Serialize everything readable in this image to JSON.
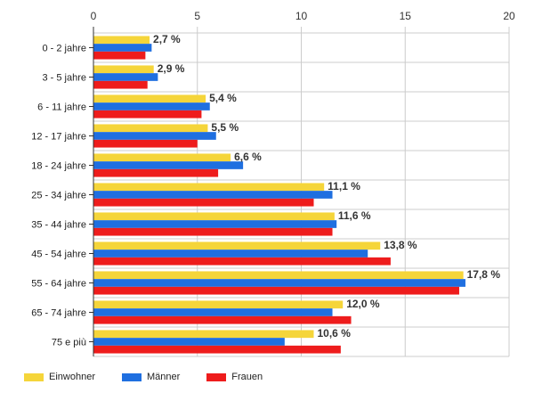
{
  "chart_data": {
    "type": "bar",
    "orientation": "horizontal",
    "xlim": [
      0,
      20
    ],
    "xticks": [
      0,
      5,
      10,
      15,
      20
    ],
    "grid": true,
    "legend_position": "bottom-left",
    "categories": [
      "0 - 2 jahre",
      "3 - 5 jahre",
      "6 - 11 jahre",
      "12 - 17 jahre",
      "18 - 24 jahre",
      "25 - 34 jahre",
      "35 - 44 jahre",
      "45 - 54 jahre",
      "55 - 64 jahre",
      "65 - 74 jahre",
      "75 e più"
    ],
    "series": [
      {
        "name": "Einwohner",
        "color": "#f5d53a",
        "values": [
          2.7,
          2.9,
          5.4,
          5.5,
          6.6,
          11.1,
          11.6,
          13.8,
          17.8,
          12.0,
          10.6
        ]
      },
      {
        "name": "Männer",
        "color": "#1f6fe0",
        "values": [
          2.8,
          3.1,
          5.6,
          5.9,
          7.2,
          11.5,
          11.7,
          13.2,
          17.9,
          11.5,
          9.2
        ]
      },
      {
        "name": "Frauen",
        "color": "#ee1c1c",
        "values": [
          2.5,
          2.6,
          5.2,
          5.0,
          6.0,
          10.6,
          11.5,
          14.3,
          17.6,
          12.4,
          11.9
        ]
      }
    ],
    "data_labels": [
      "2,7 %",
      "2,9 %",
      "5,4 %",
      "5,5 %",
      "6,6 %",
      "11,1 %",
      "11,6 %",
      "13,8 %",
      "17,8 %",
      "12,0 %",
      "10,6 %"
    ]
  }
}
